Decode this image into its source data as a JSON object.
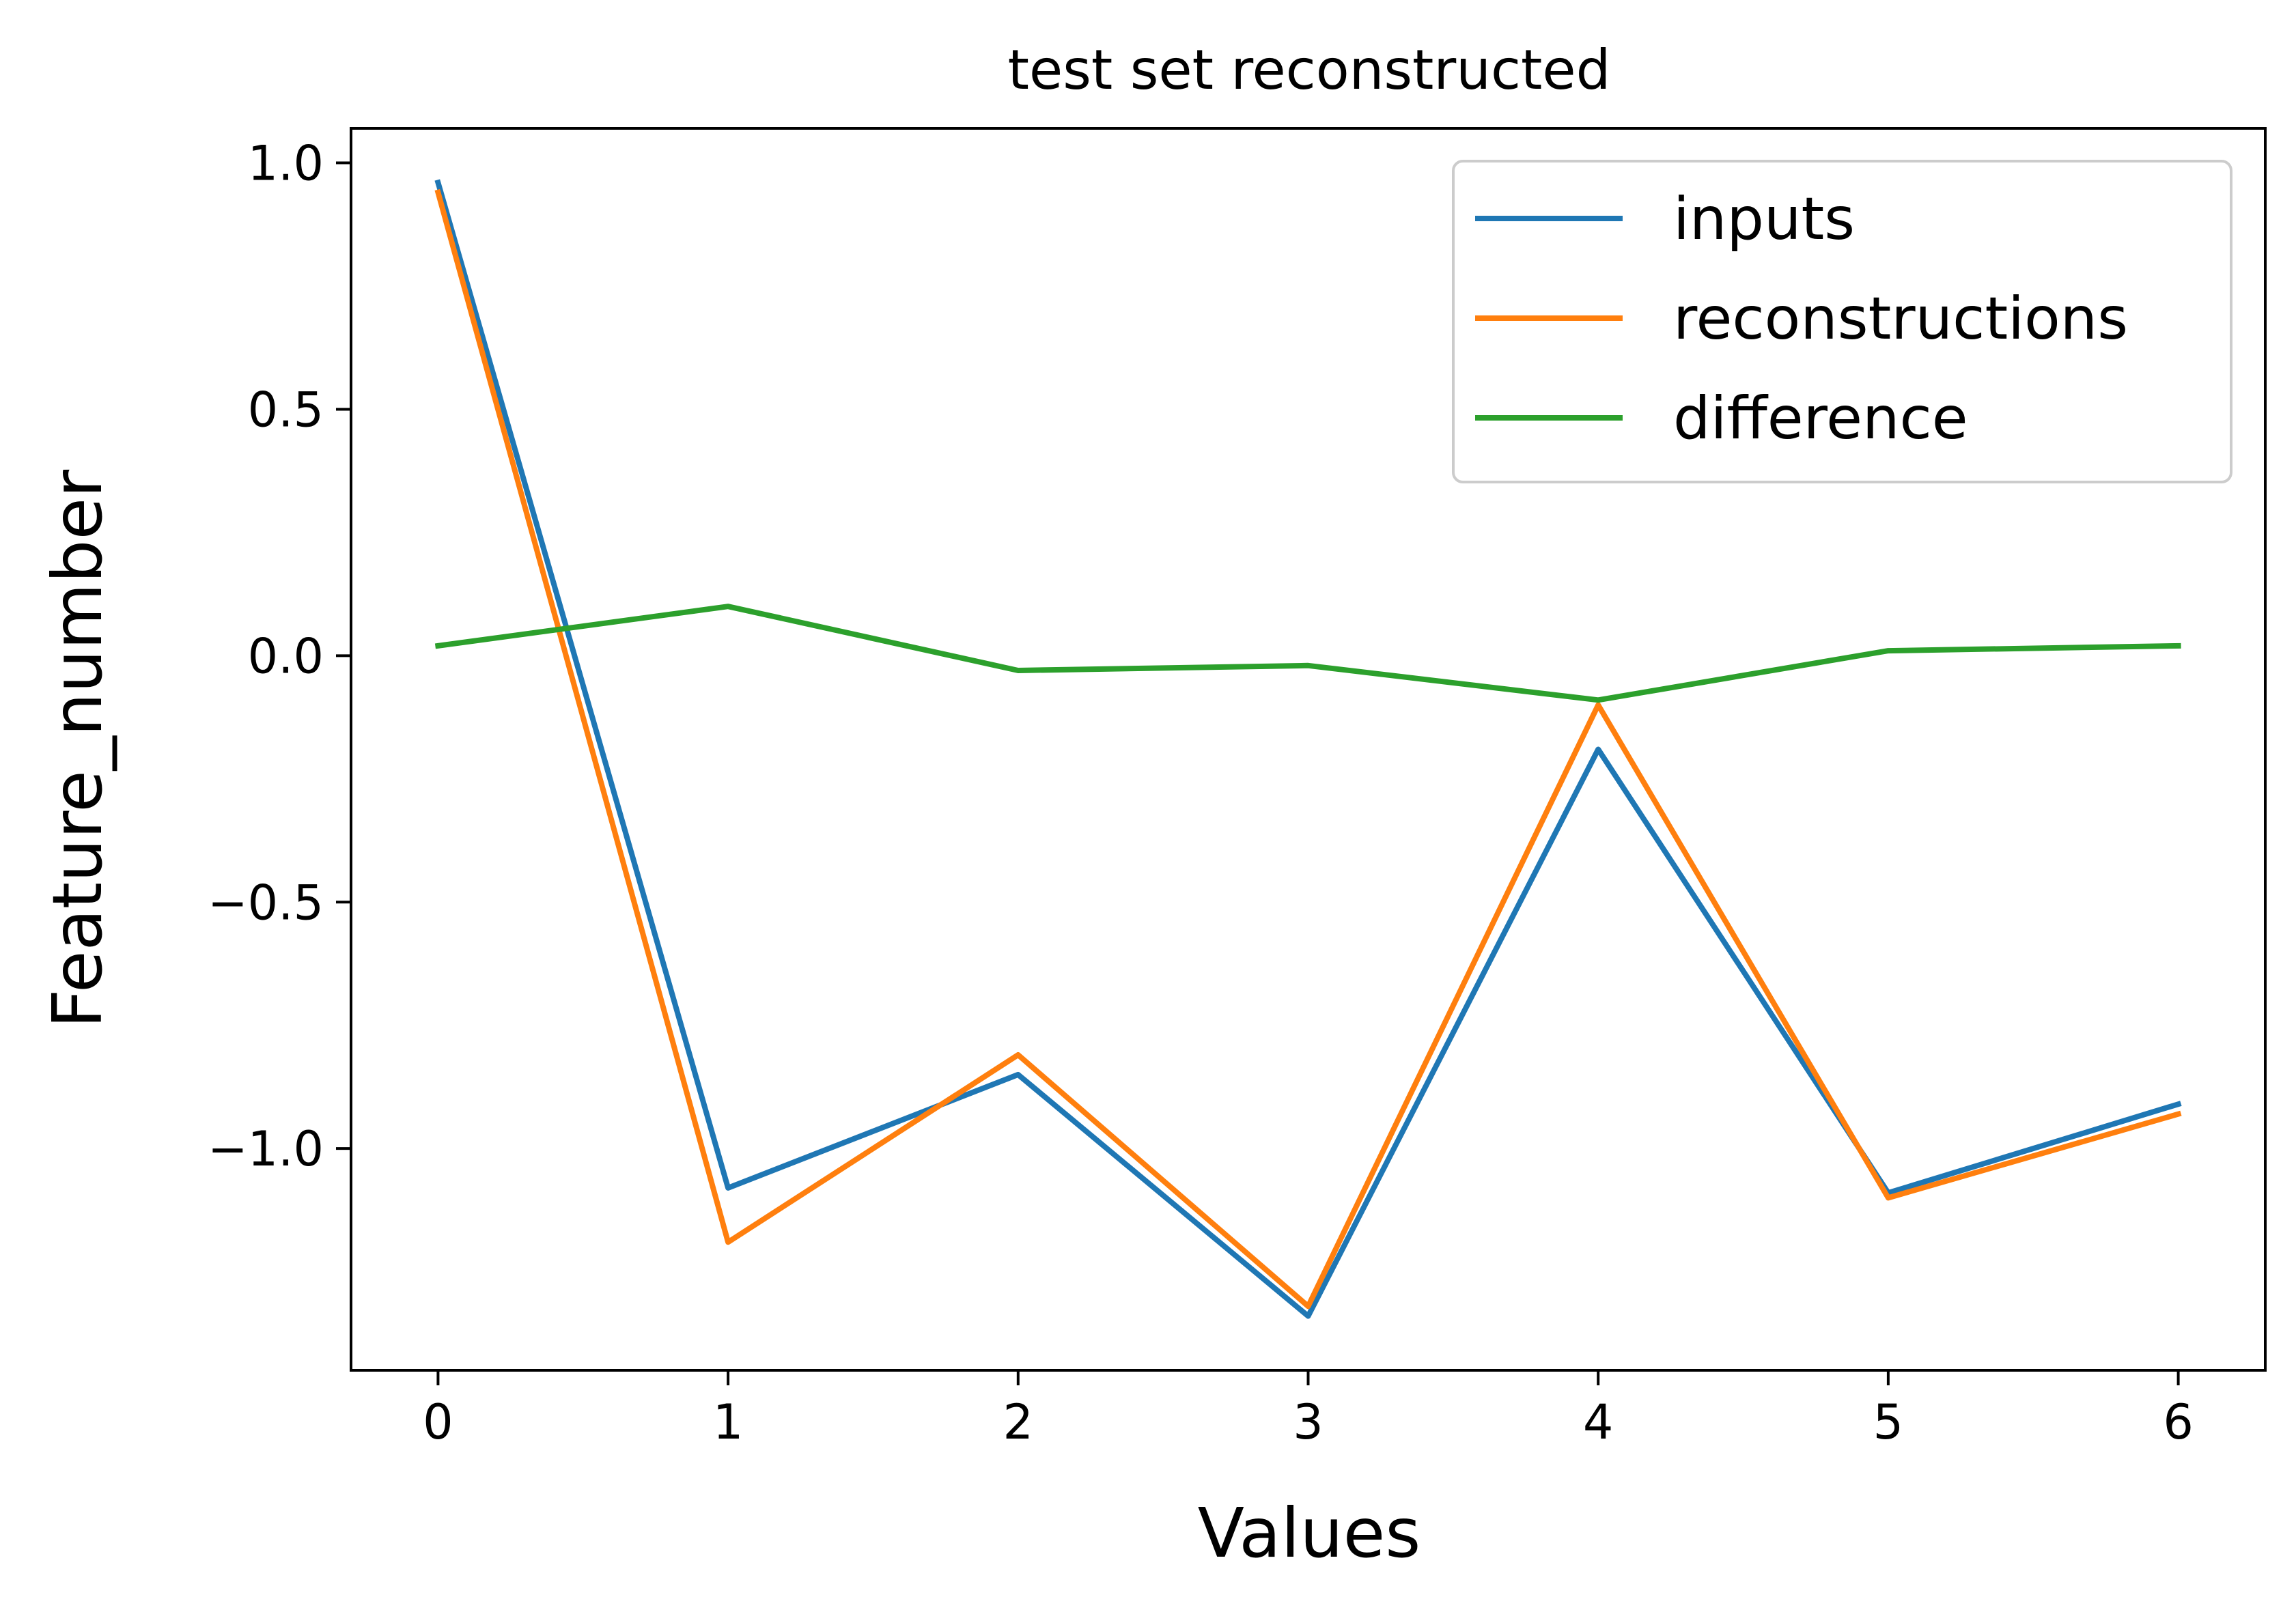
{
  "chart_data": {
    "type": "line",
    "title": "test set reconstructed",
    "xlabel": "Values",
    "ylabel": "Feature_number",
    "x": [
      0,
      1,
      2,
      3,
      4,
      5,
      6
    ],
    "xlim": [
      -0.3,
      6.3
    ],
    "ylim": [
      -1.45,
      1.07
    ],
    "xticks": [
      0,
      1,
      2,
      3,
      4,
      5,
      6
    ],
    "xtick_labels": [
      "0",
      "1",
      "2",
      "3",
      "4",
      "5",
      "6"
    ],
    "yticks": [
      1.0,
      0.5,
      0.0,
      -0.5,
      -1.0
    ],
    "ytick_labels": [
      "1.0",
      "0.5",
      "0.0",
      "−0.5",
      "−1.0"
    ],
    "grid": false,
    "legend_position": "top-right",
    "series": [
      {
        "name": "inputs",
        "color": "#1f77b4",
        "values": [
          0.96,
          -1.08,
          -0.85,
          -1.34,
          -0.19,
          -1.09,
          -0.91
        ]
      },
      {
        "name": "reconstructions",
        "color": "#ff7f0e",
        "values": [
          0.94,
          -1.19,
          -0.81,
          -1.32,
          -0.1,
          -1.1,
          -0.93
        ]
      },
      {
        "name": "difference",
        "color": "#2ca02c",
        "values": [
          0.02,
          0.1,
          -0.03,
          -0.02,
          -0.09,
          0.01,
          0.02
        ]
      }
    ]
  }
}
